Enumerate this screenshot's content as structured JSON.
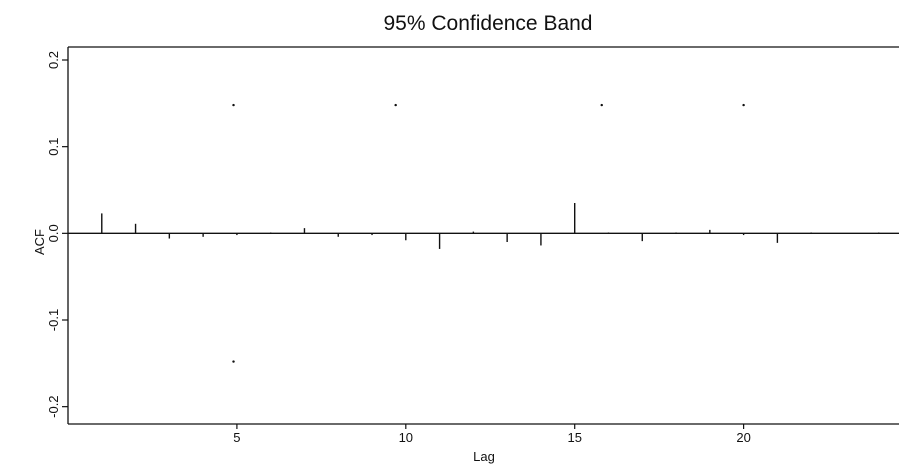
{
  "chart_data": {
    "type": "bar",
    "subtype": "acf",
    "title": "95% Confidence Band",
    "xlabel": "Lag",
    "ylabel": "ACF",
    "xlim": [
      0,
      24.6
    ],
    "ylim": [
      -0.22,
      0.215
    ],
    "xticks": [
      5,
      10,
      15,
      20
    ],
    "xtick_labels": [
      "5",
      "10",
      "15",
      "20"
    ],
    "yticks": [
      -0.2,
      -0.1,
      0.0,
      0.1,
      0.2
    ],
    "ytick_labels": [
      "-0.2",
      "-0.1",
      "0.0",
      "0.1",
      "0.2"
    ],
    "grid": false,
    "confidence_band": {
      "upper": 0.148,
      "lower": -0.148
    },
    "lags": [
      1,
      2,
      3,
      4,
      5,
      6,
      7,
      8,
      9,
      10,
      11,
      12,
      13,
      14,
      15,
      16,
      17,
      18,
      19,
      20,
      21,
      22,
      23,
      24
    ],
    "values": [
      0.023,
      0.011,
      -0.006,
      -0.004,
      -0.002,
      0.001,
      0.006,
      -0.004,
      -0.002,
      -0.008,
      -0.018,
      0.002,
      -0.01,
      -0.014,
      0.035,
      0.001,
      -0.009,
      0.001,
      0.004,
      -0.002,
      -0.011,
      0.001,
      0.0,
      0.001
    ]
  },
  "colors": {
    "axis": "#111111",
    "bar": "#111111",
    "band": "#111111",
    "background": "#ffffff"
  }
}
